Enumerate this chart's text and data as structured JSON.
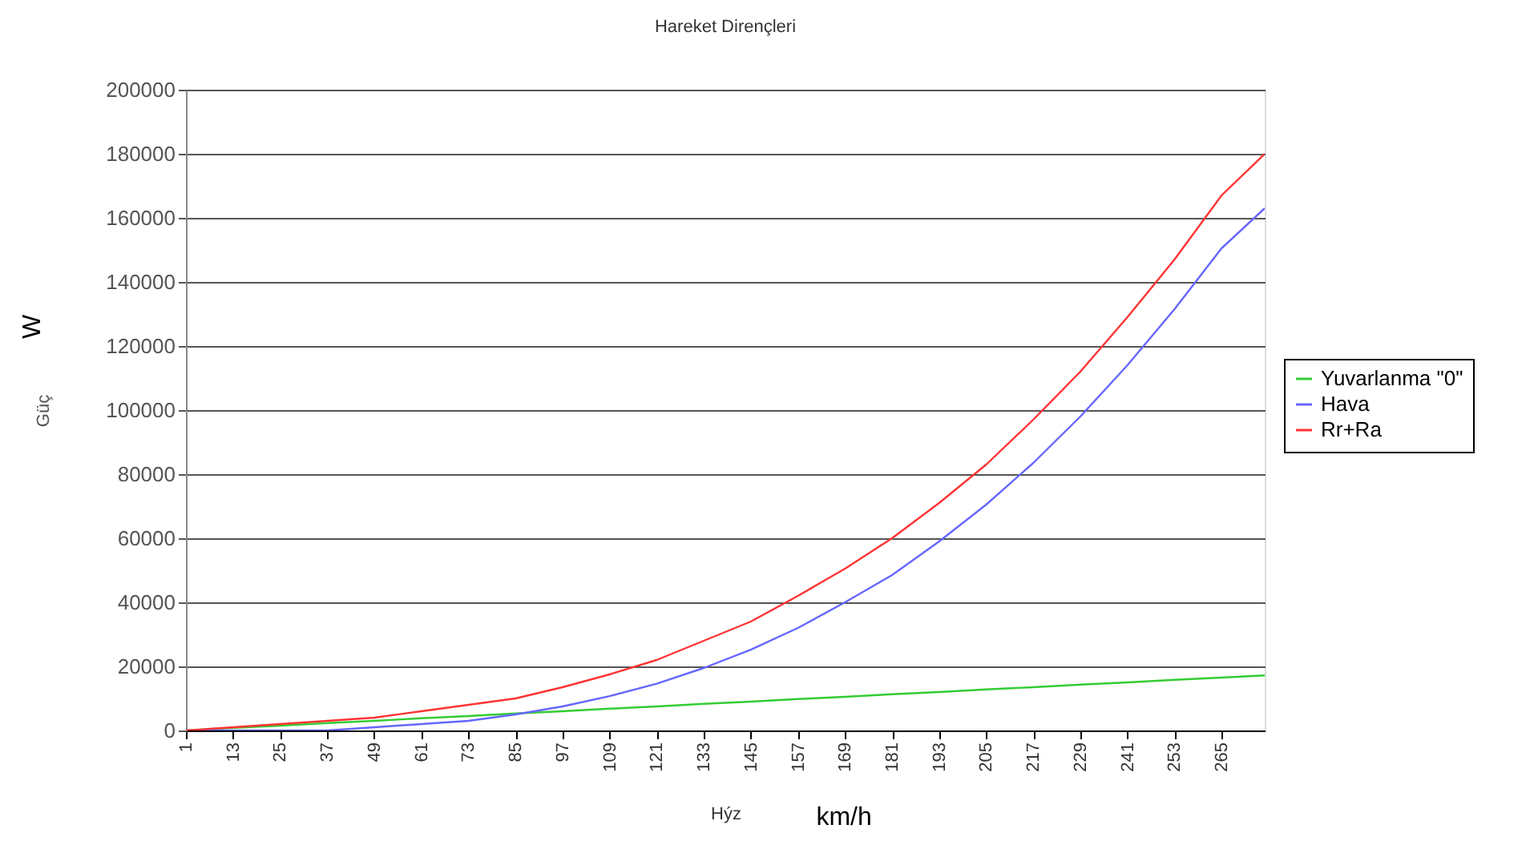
{
  "chart_data": {
    "type": "line",
    "title": "Hareket Dirençleri",
    "xlabel": "Hýz",
    "ylabel": "Güç",
    "annotations": [
      "W",
      "km/h"
    ],
    "x": [
      1,
      13,
      25,
      37,
      49,
      61,
      73,
      85,
      97,
      109,
      121,
      133,
      145,
      157,
      169,
      181,
      193,
      205,
      217,
      229,
      241,
      253,
      265,
      276
    ],
    "series": [
      {
        "name": "Yuvarlanma \"0\"",
        "color": "#33cc33",
        "values": [
          0,
          800,
          1500,
          2300,
          3000,
          3800,
          4500,
          5300,
          6000,
          6800,
          7500,
          8300,
          9000,
          9800,
          10500,
          11300,
          12000,
          12800,
          13500,
          14300,
          15000,
          15800,
          16500,
          17200
        ]
      },
      {
        "name": "Hava",
        "color": "#6666ff",
        "values": [
          0,
          0,
          0,
          0,
          1000,
          2000,
          3000,
          5000,
          7500,
          10700,
          14600,
          19500,
          25200,
          32000,
          40000,
          48500,
          59000,
          70500,
          83500,
          98000,
          114000,
          131500,
          150500,
          163000
        ]
      },
      {
        "name": "Rr+Ra",
        "color": "#ff3333",
        "values": [
          0,
          1000,
          2000,
          3000,
          4000,
          6000,
          8000,
          10000,
          13500,
          17500,
          22000,
          28000,
          34000,
          42000,
          50500,
          60000,
          71000,
          83000,
          97000,
          112000,
          129000,
          147000,
          167000,
          180000
        ]
      }
    ],
    "xlim": [
      1,
      276
    ],
    "xticks": [
      1,
      13,
      25,
      37,
      49,
      61,
      73,
      85,
      97,
      109,
      121,
      133,
      145,
      157,
      169,
      181,
      193,
      205,
      217,
      229,
      241,
      253,
      265
    ],
    "ylim": [
      0,
      200000
    ],
    "yticks": [
      0,
      20000,
      40000,
      60000,
      80000,
      100000,
      120000,
      140000,
      160000,
      180000,
      200000
    ],
    "grid": "y",
    "legend": "right",
    "marker": "none",
    "line_style": "solid"
  }
}
